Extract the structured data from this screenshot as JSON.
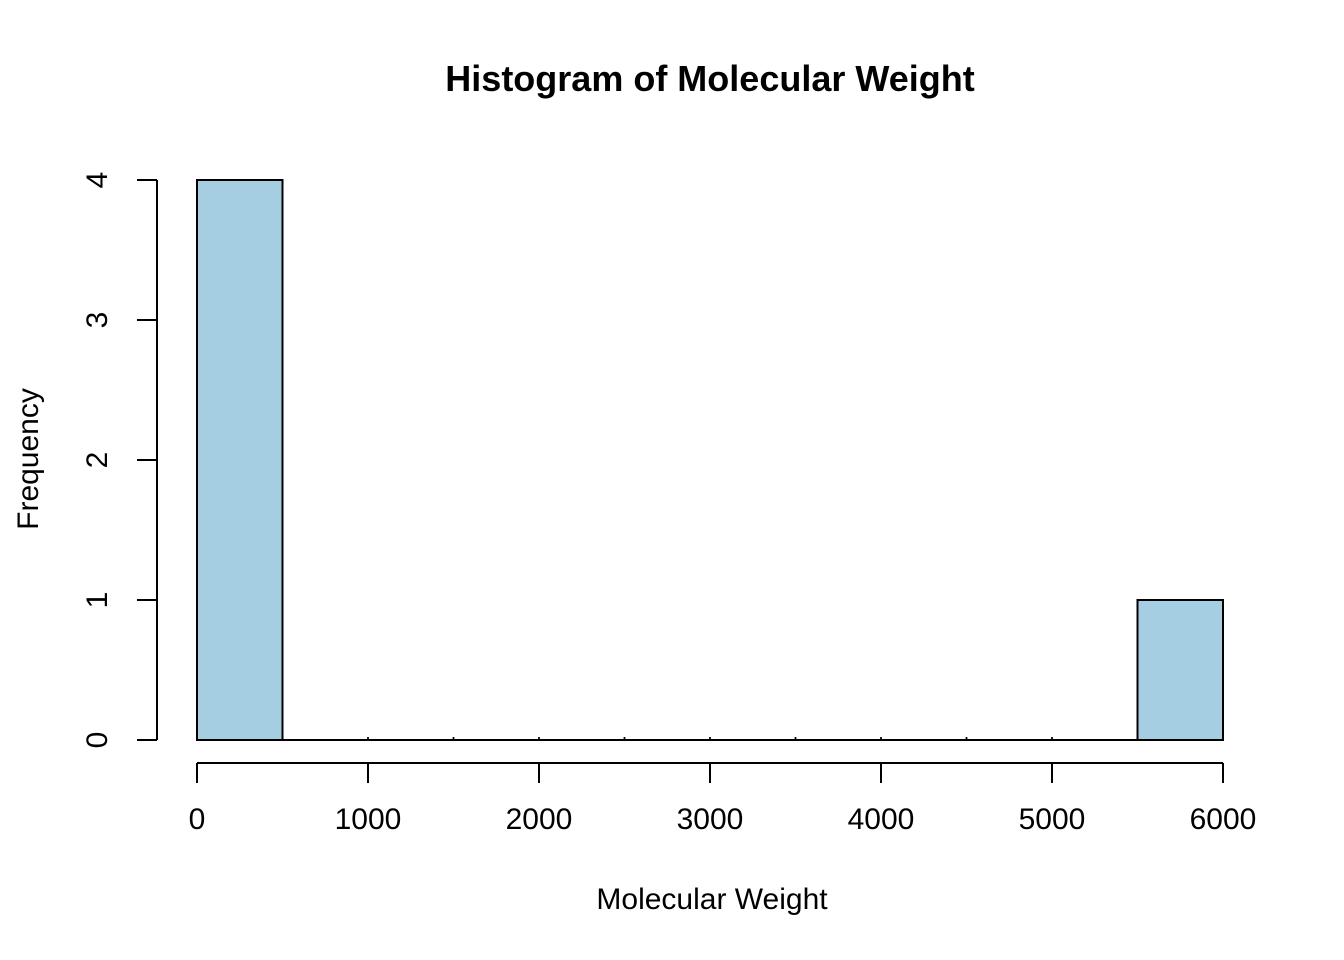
{
  "colors": {
    "background": "#ffffff",
    "bar_fill": "#A6CEE3",
    "bar_border": "#000000",
    "axis": "#000000",
    "text": "#000000"
  },
  "chart_data": {
    "type": "bar",
    "subtype": "histogram",
    "title": "Histogram of Molecular Weight",
    "xlabel": "Molecular Weight",
    "ylabel": "Frequency",
    "breaks": [
      0,
      500,
      1000,
      1500,
      2000,
      2500,
      3000,
      3500,
      4000,
      4500,
      5000,
      5500,
      6000
    ],
    "counts": [
      4,
      0,
      0,
      0,
      0,
      0,
      0,
      0,
      0,
      0,
      0,
      1
    ],
    "x_ticks": [
      "0",
      "1000",
      "2000",
      "3000",
      "4000",
      "5000",
      "6000"
    ],
    "x_tick_values": [
      0,
      1000,
      2000,
      3000,
      4000,
      5000,
      6000
    ],
    "y_ticks": [
      "0",
      "1",
      "2",
      "3",
      "4"
    ],
    "y_tick_values": [
      0,
      1,
      2,
      3,
      4
    ],
    "xlim": [
      0,
      6000
    ],
    "ylim": [
      0,
      4
    ],
    "grid": false,
    "legend": "none"
  }
}
